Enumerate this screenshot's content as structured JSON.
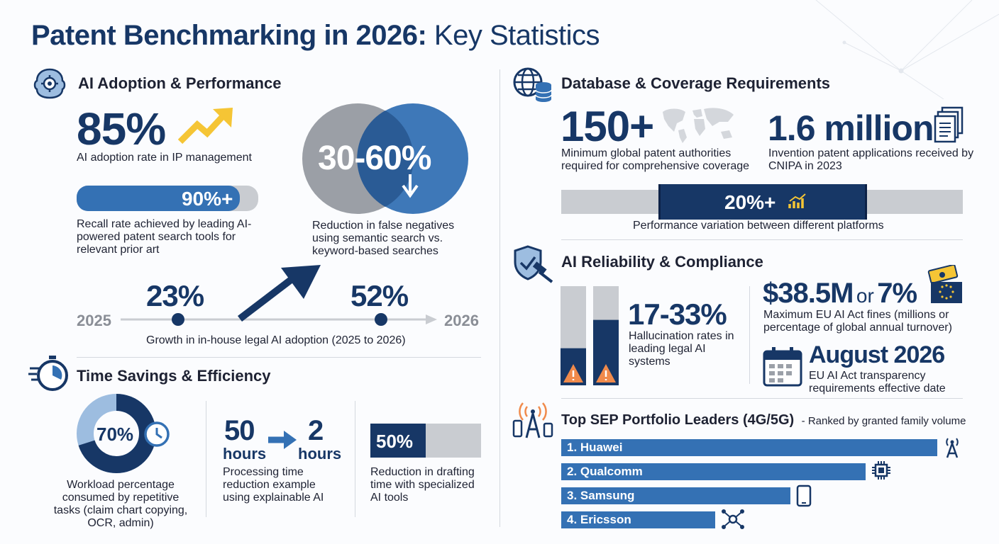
{
  "title": {
    "bold": "Patent Benchmarking in 2026:",
    "regular": "Key Statistics"
  },
  "ai_adoption": {
    "heading": "AI Adoption & Performance",
    "adoption": {
      "value": "85%",
      "label": "AI adoption rate in IP management"
    },
    "recall": {
      "value": "90%+",
      "fill": 0.9,
      "label": "Recall rate achieved by leading AI-powered patent search tools for relevant prior art"
    },
    "false_negatives": {
      "value": "30-60%",
      "label": "Reduction in false negatives using semantic search vs. keyword-based searches"
    },
    "growth": {
      "start_year": "2025",
      "end_year": "2026",
      "start_value": "23%",
      "end_value": "52%",
      "label": "Growth in in-house legal AI adoption (2025 to 2026)"
    }
  },
  "time_savings": {
    "heading": "Time Savings & Efficiency",
    "workload": {
      "value": "70%",
      "fraction": 0.7,
      "label": "Workload percentage consumed by repetitive tasks (claim chart copying, OCR, admin)"
    },
    "processing": {
      "from_value": "50",
      "from_unit": "hours",
      "to_value": "2",
      "to_unit": "hours",
      "label": "Processing time reduction example using explainable AI"
    },
    "drafting": {
      "value": "50%",
      "fraction": 0.5,
      "label": "Reduction in drafting time with specialized AI tools"
    }
  },
  "database": {
    "heading": "Database & Coverage Requirements",
    "authorities": {
      "value": "150+",
      "label": "Minimum global patent authorities required for comprehensive coverage"
    },
    "applications": {
      "value": "1.6 million",
      "label": "Invention patent applications received by CNIPA in 2023"
    },
    "variation": {
      "value": "20%+",
      "label": "Performance variation between different platforms"
    }
  },
  "reliability": {
    "heading": "AI Reliability & Compliance",
    "hallucination": {
      "value": "17-33%",
      "low": 0.17,
      "high": 0.33,
      "label": "Hallucination rates in leading legal AI systems"
    },
    "fines": {
      "value": "$38.5M",
      "connector": "or",
      "value2": "7%",
      "label": "Maximum EU AI Act fines (millions or percentage of global annual turnover)"
    },
    "transparency": {
      "value": "August 2026",
      "label": "EU AI Act transparency requirements effective date"
    }
  },
  "sep": {
    "heading": "Top SEP Portfolio Leaders (4G/5G)",
    "subheading": "- Ranked by granted family volume",
    "leaders": [
      {
        "label": "1. Huawei",
        "relative": 1.0,
        "icon": "antenna-icon"
      },
      {
        "label": "2. Qualcomm",
        "relative": 0.81,
        "icon": "chip-icon"
      },
      {
        "label": "3. Samsung",
        "relative": 0.61,
        "icon": "phone-icon"
      },
      {
        "label": "4. Ericsson",
        "relative": 0.41,
        "icon": "network-icon"
      }
    ]
  },
  "colors": {
    "navy": "#173766",
    "blue": "#3471b4",
    "light_blue": "#9dbde0",
    "gray": "#c9ccd1",
    "gold": "#f5c535",
    "warn": "#f08a4b"
  }
}
